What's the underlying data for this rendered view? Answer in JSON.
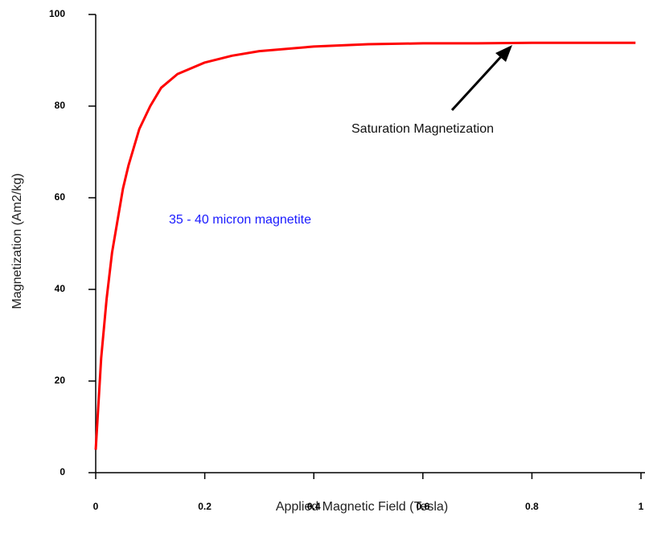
{
  "chart_data": {
    "type": "line",
    "xlabel": "Applied Magnetic Field (Tesla)",
    "ylabel": "Magnetization (Am2/kg)",
    "annotations": [
      "Saturation Magnetization",
      "35 - 40 micron magnetite"
    ],
    "x": [
      0,
      0.01,
      0.02,
      0.03,
      0.04,
      0.05,
      0.06,
      0.08,
      0.1,
      0.12,
      0.15,
      0.2,
      0.25,
      0.3,
      0.4,
      0.5,
      0.6,
      0.7,
      0.8,
      0.9,
      0.99
    ],
    "series": [
      {
        "color": "#ff0000",
        "values": [
          5,
          25,
          38,
          48,
          55,
          62,
          67,
          75,
          80,
          84,
          87,
          89.5,
          91,
          92,
          93,
          93.5,
          93.7,
          93.7,
          93.8,
          93.8,
          93.8
        ]
      }
    ],
    "xlim": [
      0,
      1
    ],
    "ylim": [
      0,
      100
    ],
    "xticks": [
      0,
      0.2,
      0.4,
      0.6,
      0.8,
      1
    ],
    "yticks": [
      0,
      20,
      40,
      60,
      80,
      100
    ],
    "grid": false
  }
}
